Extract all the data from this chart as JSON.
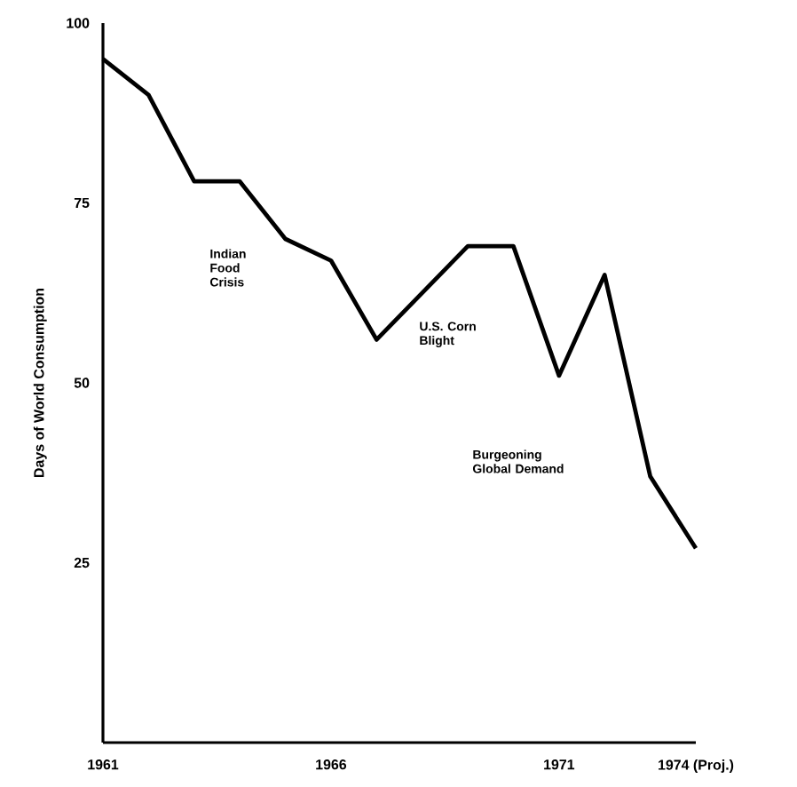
{
  "chart_data": {
    "type": "line",
    "ylabel": "Days of World Consumption",
    "x": [
      1961,
      1962,
      1963,
      1964,
      1965,
      1966,
      1967,
      1969,
      1970,
      1971,
      1972,
      1973,
      1974
    ],
    "values": [
      95,
      90,
      78,
      78,
      70,
      67,
      56,
      69,
      69,
      51,
      65,
      37,
      27
    ],
    "color": "#000000",
    "xlim": [
      1961,
      1974
    ],
    "xticks": [
      1961,
      1966,
      1971,
      {
        "value": 1974,
        "label": "1974 (Proj.)"
      }
    ],
    "ylim": [
      0,
      100
    ],
    "yticks": [
      25,
      50,
      75,
      100
    ],
    "grid": false,
    "marker": "none",
    "line_style": "solid",
    "annotations": [
      "Indian Food Crisis",
      "U.S. Corn Blight",
      "Burgeoning Global Demand"
    ]
  }
}
